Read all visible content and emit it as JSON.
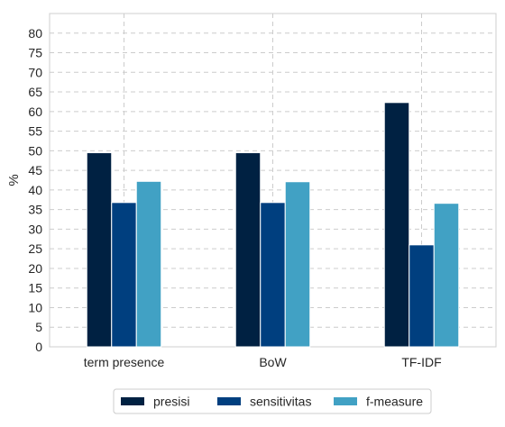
{
  "chart_data": {
    "type": "bar",
    "categories": [
      "term presence",
      "BoW",
      "TF-IDF"
    ],
    "series": [
      {
        "name": "presisi",
        "color": "#002142",
        "values": [
          49.5,
          49.5,
          62.3
        ]
      },
      {
        "name": "sensitivitas",
        "color": "#003f7f",
        "values": [
          36.8,
          36.8,
          26.0
        ]
      },
      {
        "name": "f-measure",
        "color": "#41a1c4",
        "values": [
          42.2,
          42.1,
          36.6
        ]
      }
    ],
    "xlabel": "",
    "ylabel": "%",
    "ylim": [
      0,
      85
    ],
    "yticks": [
      0,
      5,
      10,
      15,
      20,
      25,
      30,
      35,
      40,
      45,
      50,
      55,
      60,
      65,
      70,
      75,
      80
    ],
    "grid": true,
    "legend_position": "bottom-center"
  }
}
